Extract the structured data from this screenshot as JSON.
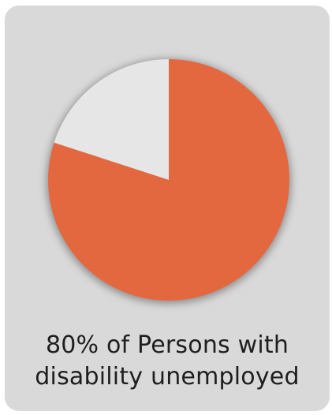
{
  "chart_data": {
    "type": "pie",
    "slices": [
      {
        "label": "Persons with disability unemployed",
        "value": 80,
        "color": "#e4683f"
      },
      {
        "label": "",
        "value": 20,
        "color": "#e6e6e6"
      }
    ],
    "start_angle_deg": 0,
    "title": ""
  },
  "caption": {
    "line1": "80% of Persons with",
    "line2": "disability unemployed"
  },
  "colors": {
    "card_background": "#d9d9d9",
    "highlight": "#e4683f",
    "remainder": "#e6e6e6"
  }
}
